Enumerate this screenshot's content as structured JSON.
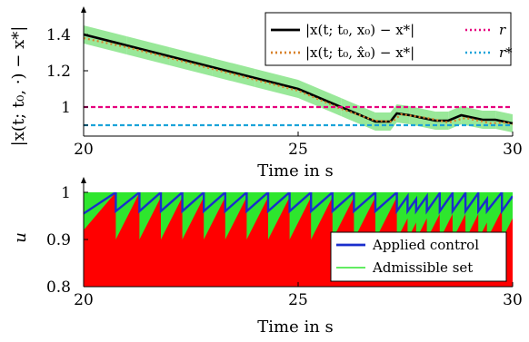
{
  "chart_data": [
    {
      "type": "line",
      "xlabel": "Time in s",
      "ylabel": "|x(t; t₀, ·) − x*|",
      "xlim": [
        20,
        30
      ],
      "ylim": [
        0.84,
        1.5
      ],
      "xticks": [
        "20",
        "25",
        "30"
      ],
      "yticks": [
        "1.4",
        "1.2",
        "1",
        ""
      ],
      "ytick_values": [
        1.4,
        1.2,
        1.0,
        0.9
      ],
      "legend_position": "top-right",
      "series": [
        {
          "name": "|x(t; t₀, x₀) − x*|",
          "color": "#000000",
          "style": "solid",
          "x": [
            20,
            21,
            22,
            23,
            24,
            25,
            26,
            26.8,
            27.15,
            27.3,
            27.6,
            28.2,
            28.5,
            28.8,
            29.3,
            29.6,
            30
          ],
          "y": [
            1.4,
            1.34,
            1.28,
            1.22,
            1.16,
            1.1,
            1.0,
            0.92,
            0.92,
            0.965,
            0.955,
            0.925,
            0.925,
            0.955,
            0.93,
            0.93,
            0.91
          ]
        },
        {
          "name": "|x(t; t₀, x̂₀) − x*|",
          "color": "#d9822b",
          "style": "dotted",
          "x": [
            20,
            21,
            22,
            23,
            24,
            25,
            26,
            26.8,
            27.2,
            27.4,
            28.0,
            28.5,
            28.9,
            29.5,
            29.8,
            30
          ],
          "y": [
            1.38,
            1.33,
            1.27,
            1.21,
            1.15,
            1.09,
            0.99,
            0.925,
            0.92,
            0.96,
            0.94,
            0.915,
            0.94,
            0.91,
            0.915,
            0.905
          ]
        },
        {
          "name": "r",
          "color": "#e6007e",
          "style": "dotted",
          "x": [
            20,
            30
          ],
          "y": [
            1.0,
            1.0
          ]
        },
        {
          "name": "r*",
          "color": "#1aa3d9",
          "style": "dotted",
          "x": [
            20,
            30
          ],
          "y": [
            0.9,
            0.9
          ]
        }
      ]
    },
    {
      "type": "area",
      "xlabel": "Time in s",
      "ylabel": "u",
      "xlim": [
        20,
        30
      ],
      "ylim": [
        0.8,
        1.0
      ],
      "xticks": [
        "20",
        "25",
        "30"
      ],
      "yticks": [
        "1",
        "0.9",
        "0.8"
      ],
      "ytick_values": [
        1.0,
        0.9,
        0.8
      ],
      "legend_position": "bottom-right",
      "switch_times": [
        20.75,
        21.3,
        21.8,
        22.3,
        22.8,
        23.3,
        23.8,
        24.3,
        24.8,
        25.3,
        25.8,
        26.3,
        26.8,
        27.3,
        27.55,
        27.75,
        28.0,
        28.3,
        28.6,
        28.9,
        29.2,
        29.4,
        29.75,
        30
      ],
      "series": [
        {
          "name": "Applied control",
          "color": "#1a2ecc",
          "start_value": 0.955,
          "reset_value": 0.96,
          "rate_per_s": 0.08
        },
        {
          "name": "Admissible set",
          "color": "#2ee62e",
          "upper": 1.0,
          "fill_below_color": "#ff0000",
          "lower_after_switch": 0.9,
          "lower_rate_per_s": 0.18
        }
      ]
    }
  ]
}
